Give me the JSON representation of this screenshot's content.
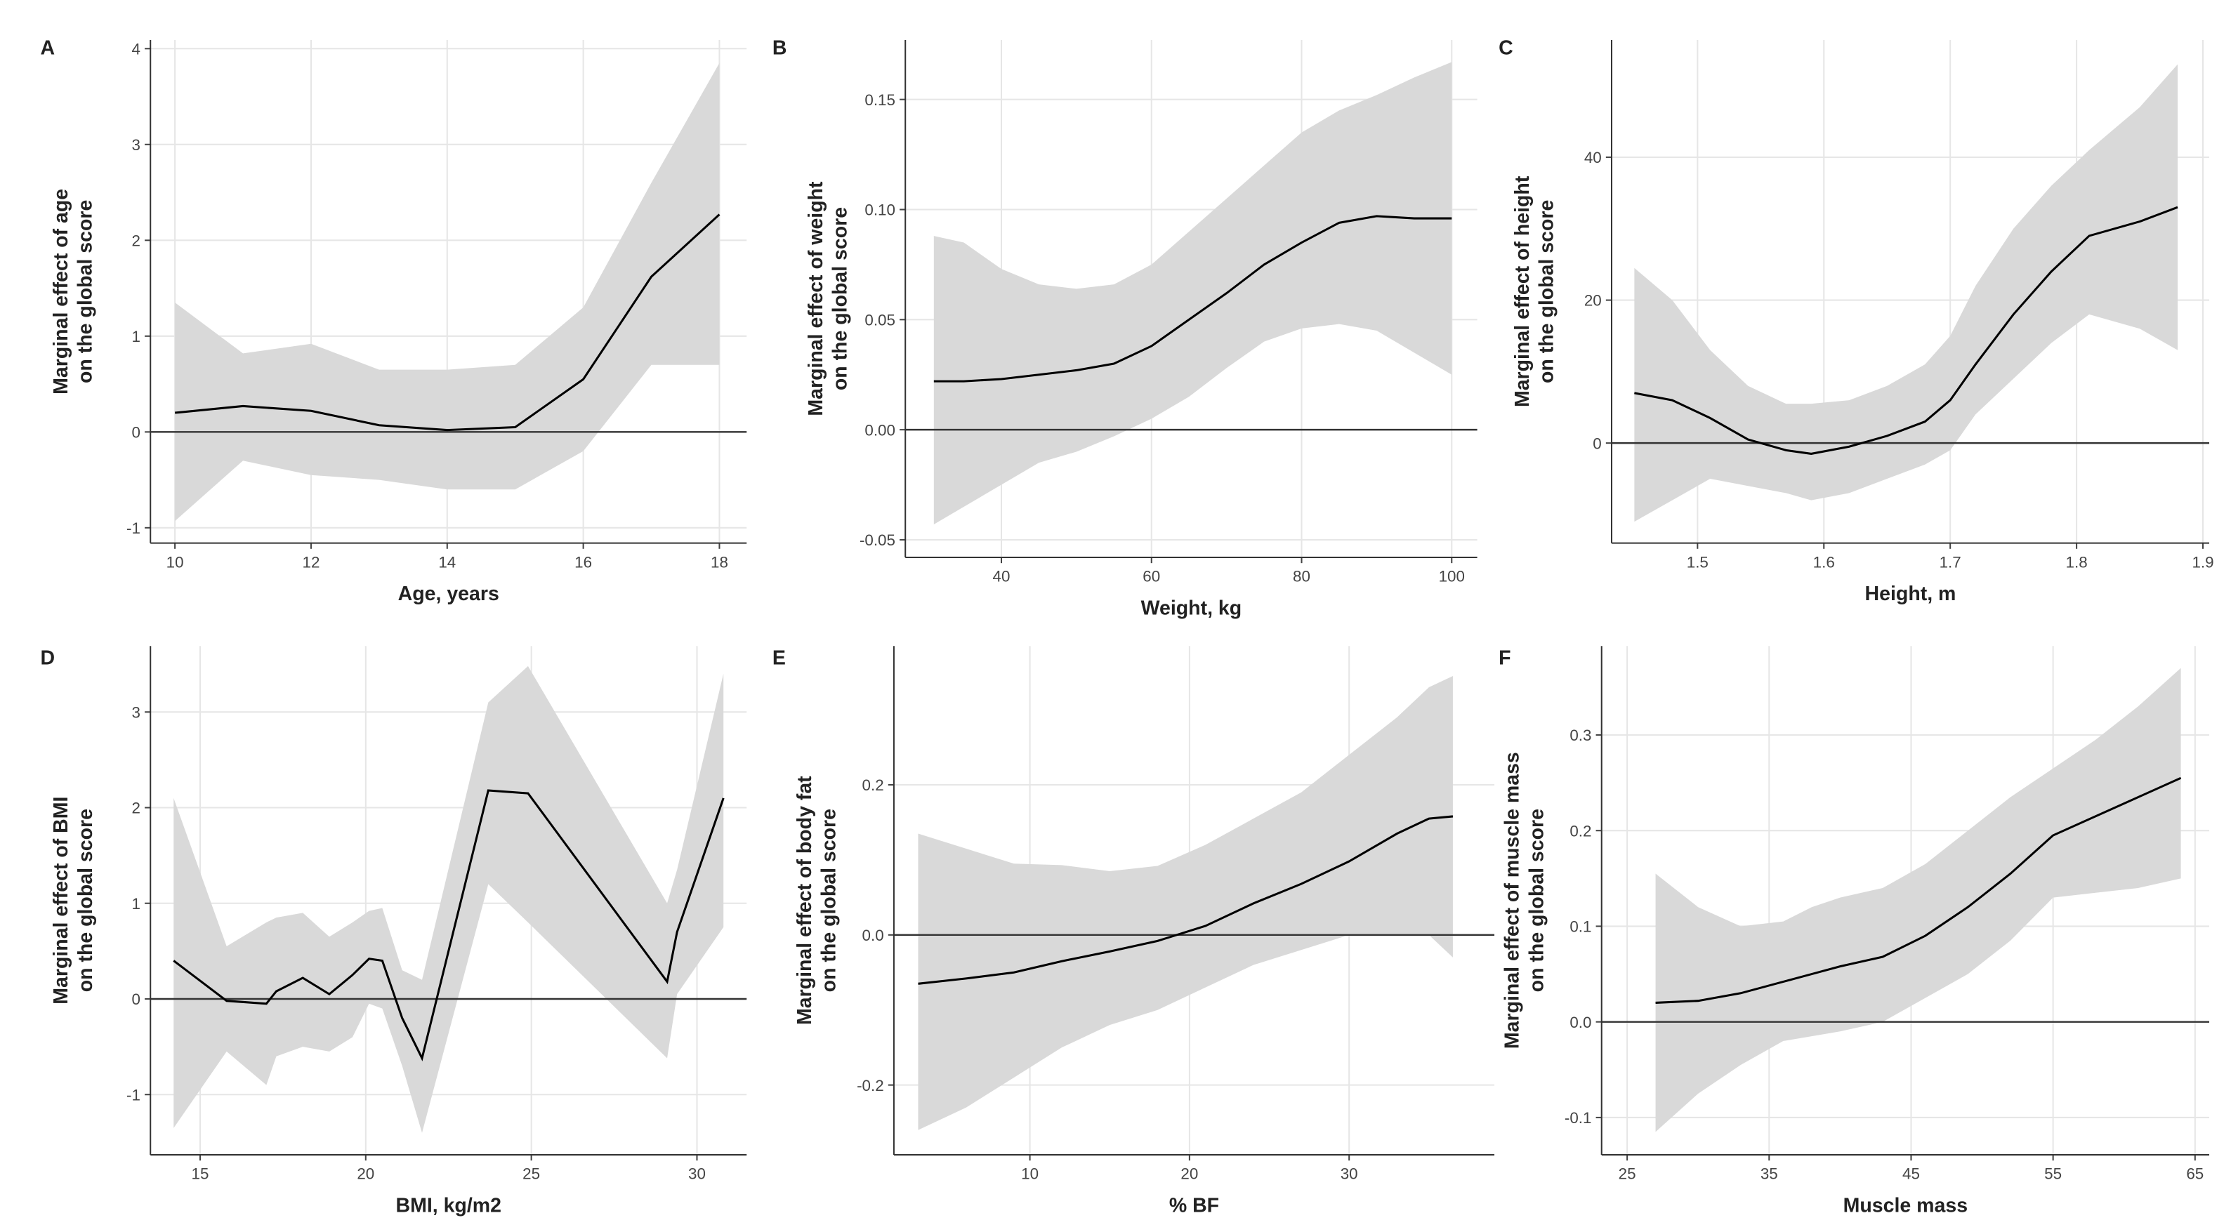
{
  "chart_data": [
    {
      "type": "line",
      "label": "A",
      "x_label": "Age, years",
      "y_label": [
        "Marginal effect of age",
        "on the global score"
      ],
      "x": [
        10,
        11,
        12,
        13,
        14,
        15,
        16,
        17,
        18
      ],
      "series": [
        {
          "color": "#000000",
          "band_color": "#d9d9d9",
          "values": [
            0.2,
            0.27,
            0.22,
            0.07,
            0.02,
            0.05,
            0.55,
            1.62,
            2.27
          ],
          "lower": [
            -0.93,
            -0.3,
            -0.45,
            -0.5,
            -0.6,
            -0.6,
            -0.2,
            0.7,
            0.7
          ],
          "upper": [
            1.35,
            0.82,
            0.92,
            0.65,
            0.65,
            0.7,
            1.3,
            2.6,
            3.85
          ]
        }
      ],
      "xlim": [
        9.64,
        18.4
      ],
      "ylim": [
        -1.16,
        4.09
      ],
      "xticks": [
        10,
        12,
        14,
        16,
        18
      ],
      "yticks": [
        -1,
        0,
        1,
        2,
        3,
        4
      ],
      "grid": true,
      "hline": 0
    },
    {
      "type": "line",
      "label": "B",
      "x_label": "Weight, kg",
      "y_label": [
        "Marginal effect of weight",
        "on the global score"
      ],
      "x": [
        31,
        35,
        40,
        45,
        50,
        55,
        60,
        65,
        70,
        75,
        80,
        85,
        90,
        95,
        100
      ],
      "series": [
        {
          "color": "#000000",
          "band_color": "#d9d9d9",
          "values": [
            0.022,
            0.022,
            0.023,
            0.025,
            0.027,
            0.03,
            0.038,
            0.05,
            0.062,
            0.075,
            0.085,
            0.094,
            0.097,
            0.096,
            0.096
          ],
          "lower": [
            -0.043,
            -0.035,
            -0.025,
            -0.015,
            -0.01,
            -0.003,
            0.005,
            0.015,
            0.028,
            0.04,
            0.046,
            0.048,
            0.045,
            0.035,
            0.025
          ],
          "upper": [
            0.088,
            0.085,
            0.073,
            0.066,
            0.064,
            0.066,
            0.075,
            0.09,
            0.105,
            0.12,
            0.135,
            0.145,
            0.152,
            0.16,
            0.167
          ]
        }
      ],
      "xlim": [
        27.2,
        103.4
      ],
      "ylim": [
        -0.058,
        0.177
      ],
      "xticks": [
        40,
        60,
        80,
        100
      ],
      "yticks": [
        {
          "value": -0.05,
          "label": "-0.05"
        },
        {
          "value": 0,
          "label": "0.00"
        },
        0.05,
        {
          "value": 0.1,
          "label": "0.10"
        },
        0.15
      ],
      "grid": true,
      "hline": 0
    },
    {
      "type": "line",
      "label": "C",
      "x_label": "Height, m",
      "y_label": [
        "Marginal effect of height",
        "on the global score"
      ],
      "x": [
        1.45,
        1.48,
        1.51,
        1.54,
        1.57,
        1.59,
        1.62,
        1.65,
        1.68,
        1.7,
        1.72,
        1.75,
        1.78,
        1.81,
        1.85,
        1.88
      ],
      "series": [
        {
          "color": "#000000",
          "band_color": "#d9d9d9",
          "values": [
            7,
            6,
            3.5,
            0.5,
            -1,
            -1.5,
            -0.5,
            1,
            3,
            6,
            11,
            18,
            24,
            29,
            31,
            33
          ],
          "lower": [
            -11,
            -8,
            -5,
            -6,
            -7,
            -8,
            -7,
            -5,
            -3,
            -1,
            4,
            9,
            14,
            18,
            16,
            13
          ],
          "upper": [
            24.5,
            20,
            13,
            8,
            5.5,
            5.5,
            6,
            8,
            11,
            15,
            22,
            30,
            36,
            41,
            47,
            53
          ]
        }
      ],
      "xlim": [
        1.432,
        1.905
      ],
      "ylim": [
        -14,
        56.4
      ],
      "xticks": [
        1.5,
        1.6,
        1.7,
        1.8,
        1.9
      ],
      "yticks": [
        0,
        20,
        40
      ],
      "grid": true,
      "hline": 0
    },
    {
      "type": "line",
      "label": "D",
      "x_label": "BMI, kg/m2",
      "y_label": [
        "Marginal effect of BMI",
        "on the global score"
      ],
      "x": [
        14.2,
        15.8,
        17,
        17.3,
        18.1,
        18.9,
        19.6,
        20.1,
        20.5,
        21.1,
        21.7,
        23.7,
        24.9,
        29.1,
        29.4,
        30.8
      ],
      "series": [
        {
          "color": "#000000",
          "band_color": "#d9d9d9",
          "values": [
            0.4,
            -0.02,
            -0.05,
            0.08,
            0.22,
            0.05,
            0.25,
            0.42,
            0.4,
            -0.2,
            -0.62,
            2.18,
            2.15,
            0.18,
            0.7,
            2.1
          ],
          "lower": [
            -1.35,
            -0.55,
            -0.9,
            -0.6,
            -0.5,
            -0.55,
            -0.4,
            -0.05,
            -0.1,
            -0.7,
            -1.4,
            1.2,
            0.8,
            -0.62,
            0.05,
            0.75
          ],
          "upper": [
            2.1,
            0.55,
            0.8,
            0.85,
            0.9,
            0.65,
            0.8,
            0.92,
            0.95,
            0.3,
            0.2,
            3.1,
            3.48,
            1.0,
            1.35,
            3.4
          ]
        }
      ],
      "xlim": [
        13.5,
        31.5
      ],
      "ylim": [
        -1.63,
        3.69
      ],
      "xticks": [
        15,
        20,
        25,
        30
      ],
      "yticks": [
        -1,
        0,
        1,
        2,
        3
      ],
      "grid": true,
      "hline": 0
    },
    {
      "type": "line",
      "label": "E",
      "x_label": "% BF",
      "y_label": [
        "Marginal effect of body fat",
        "on the global score"
      ],
      "x": [
        3,
        6,
        9,
        12,
        15,
        18,
        21,
        24,
        27,
        30,
        33,
        35,
        36.5
      ],
      "series": [
        {
          "color": "#000000",
          "band_color": "#d9d9d9",
          "values": [
            -0.065,
            -0.058,
            -0.05,
            -0.035,
            -0.022,
            -0.008,
            0.012,
            0.042,
            0.068,
            0.098,
            0.135,
            0.155,
            0.158
          ],
          "lower": [
            -0.26,
            -0.23,
            -0.19,
            -0.15,
            -0.12,
            -0.1,
            -0.07,
            -0.04,
            -0.02,
            0.0,
            0.0,
            0.0,
            -0.03
          ],
          "upper": [
            0.135,
            0.115,
            0.095,
            0.093,
            0.085,
            0.092,
            0.12,
            0.155,
            0.19,
            0.24,
            0.29,
            0.33,
            0.345
          ]
        }
      ],
      "xlim": [
        1.48,
        39.1
      ],
      "ylim": [
        -0.293,
        0.385
      ],
      "xticks": [
        10,
        20,
        30
      ],
      "yticks": [
        -0.2,
        {
          "value": 0,
          "label": "0.0"
        },
        0.2
      ],
      "grid": true,
      "hline": 0
    },
    {
      "type": "line",
      "label": "F",
      "x_label": "Muscle mass",
      "y_label": [
        "Marginal effect of muscle mass",
        "on the global score"
      ],
      "x": [
        27,
        30,
        33,
        36,
        38,
        40,
        43,
        46,
        49,
        52,
        55,
        58,
        61,
        64
      ],
      "series": [
        {
          "color": "#000000",
          "band_color": "#d9d9d9",
          "values": [
            0.02,
            0.022,
            0.03,
            0.042,
            0.05,
            0.058,
            0.068,
            0.09,
            0.12,
            0.155,
            0.195,
            0.215,
            0.235,
            0.255
          ],
          "lower": [
            -0.115,
            -0.075,
            -0.045,
            -0.02,
            -0.015,
            -0.01,
            0.0,
            0.025,
            0.05,
            0.085,
            0.13,
            0.135,
            0.14,
            0.15
          ],
          "upper": [
            0.155,
            0.12,
            0.1,
            0.105,
            0.12,
            0.13,
            0.14,
            0.165,
            0.2,
            0.235,
            0.265,
            0.295,
            0.33,
            0.37
          ]
        }
      ],
      "xlim": [
        23.2,
        66
      ],
      "ylim": [
        -0.139,
        0.393
      ],
      "xticks": [
        25,
        35,
        45,
        55,
        65
      ],
      "yticks": [
        -0.1,
        {
          "value": 0,
          "label": "0.0"
        },
        0.1,
        0.2,
        0.3
      ],
      "grid": true,
      "hline": 0
    }
  ]
}
